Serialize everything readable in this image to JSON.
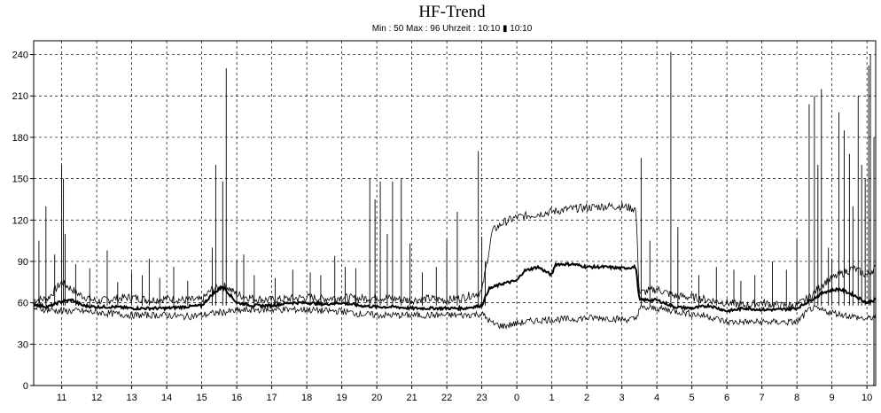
{
  "title": "HF-Trend",
  "subtitle": "Min : 50   Max : 96   Uhrzeit : 10:10 ▮ 10:10",
  "chart_data": {
    "type": "line",
    "title": "HF-Trend",
    "subtitle": "Min : 50   Max : 96   Uhrzeit : 10:10 ▮ 10:10",
    "xlabel": "",
    "ylabel": "",
    "ylim": [
      0,
      250
    ],
    "y_ticks": [
      0,
      30,
      60,
      90,
      120,
      150,
      180,
      210,
      240
    ],
    "x_ticks": [
      "11",
      "12",
      "13",
      "14",
      "15",
      "16",
      "17",
      "18",
      "19",
      "20",
      "21",
      "22",
      "23",
      "0",
      "1",
      "2",
      "3",
      "4",
      "5",
      "6",
      "7",
      "8",
      "9",
      "10"
    ],
    "x_range_hours": [
      10.2,
      34.25
    ],
    "grid": true,
    "series": [
      {
        "role": "max",
        "points": [
          [
            10.2,
            62
          ],
          [
            10.6,
            63
          ],
          [
            11,
            75
          ],
          [
            11.5,
            66
          ],
          [
            12,
            61
          ],
          [
            12.5,
            63
          ],
          [
            13,
            64
          ],
          [
            13.5,
            62
          ],
          [
            14,
            63
          ],
          [
            14.5,
            62
          ],
          [
            15,
            62
          ],
          [
            15.3,
            70
          ],
          [
            15.7,
            72
          ],
          [
            16,
            66
          ],
          [
            16.5,
            63
          ],
          [
            17,
            62
          ],
          [
            17.5,
            63
          ],
          [
            18,
            64
          ],
          [
            18.5,
            63
          ],
          [
            19,
            64
          ],
          [
            19.5,
            63
          ],
          [
            20,
            64
          ],
          [
            20.5,
            63
          ],
          [
            21,
            62
          ],
          [
            21.5,
            63
          ],
          [
            22,
            62
          ],
          [
            22.5,
            64
          ],
          [
            23,
            68
          ],
          [
            23.3,
            112
          ],
          [
            23.6,
            118
          ],
          [
            24,
            122
          ],
          [
            24.5,
            124
          ],
          [
            25,
            126
          ],
          [
            25.5,
            128
          ],
          [
            26,
            129
          ],
          [
            26.5,
            130
          ],
          [
            27,
            130
          ],
          [
            27.4,
            128
          ],
          [
            27.5,
            67
          ],
          [
            28,
            70
          ],
          [
            28.5,
            65
          ],
          [
            29,
            64
          ],
          [
            29.5,
            62
          ],
          [
            30,
            60
          ],
          [
            30.5,
            58
          ],
          [
            31,
            60
          ],
          [
            31.5,
            58
          ],
          [
            32,
            58
          ],
          [
            32.4,
            65
          ],
          [
            32.8,
            75
          ],
          [
            33.2,
            80
          ],
          [
            33.6,
            85
          ],
          [
            34,
            80
          ],
          [
            34.2,
            85
          ]
        ]
      },
      {
        "role": "mean",
        "points": [
          [
            10.2,
            59
          ],
          [
            10.6,
            57
          ],
          [
            11,
            61
          ],
          [
            11.3,
            62
          ],
          [
            11.6,
            58
          ],
          [
            12,
            57
          ],
          [
            12.5,
            57
          ],
          [
            13,
            56
          ],
          [
            13.5,
            56
          ],
          [
            14,
            56
          ],
          [
            14.5,
            57
          ],
          [
            15,
            58
          ],
          [
            15.3,
            66
          ],
          [
            15.6,
            72
          ],
          [
            16,
            60
          ],
          [
            16.5,
            58
          ],
          [
            17,
            58
          ],
          [
            17.5,
            60
          ],
          [
            18,
            60
          ],
          [
            18.5,
            59
          ],
          [
            19,
            60
          ],
          [
            19.5,
            58
          ],
          [
            20,
            57
          ],
          [
            20.5,
            57
          ],
          [
            21,
            56
          ],
          [
            21.5,
            56
          ],
          [
            22,
            56
          ],
          [
            22.5,
            56
          ],
          [
            23,
            58
          ],
          [
            23.2,
            70
          ],
          [
            23.6,
            74
          ],
          [
            24,
            76
          ],
          [
            24.2,
            83
          ],
          [
            24.6,
            86
          ],
          [
            25,
            80
          ],
          [
            25.1,
            88
          ],
          [
            25.6,
            88
          ],
          [
            26,
            86
          ],
          [
            26.5,
            86
          ],
          [
            27,
            85
          ],
          [
            27.4,
            86
          ],
          [
            27.5,
            62
          ],
          [
            28,
            62
          ],
          [
            28.5,
            57
          ],
          [
            29,
            56
          ],
          [
            29.5,
            58
          ],
          [
            30,
            54
          ],
          [
            30.5,
            56
          ],
          [
            31,
            55
          ],
          [
            31.5,
            55
          ],
          [
            32,
            56
          ],
          [
            32.4,
            62
          ],
          [
            32.8,
            68
          ],
          [
            33.2,
            70
          ],
          [
            33.6,
            66
          ],
          [
            34,
            60
          ],
          [
            34.2,
            62
          ]
        ]
      },
      {
        "role": "min",
        "points": [
          [
            10.2,
            56
          ],
          [
            10.6,
            55
          ],
          [
            11,
            54
          ],
          [
            11.5,
            54
          ],
          [
            12,
            53
          ],
          [
            12.5,
            52
          ],
          [
            13,
            51
          ],
          [
            13.5,
            51
          ],
          [
            14,
            51
          ],
          [
            14.5,
            50
          ],
          [
            15,
            51
          ],
          [
            15.5,
            53
          ],
          [
            16,
            54
          ],
          [
            16.5,
            55
          ],
          [
            17,
            55
          ],
          [
            17.5,
            55
          ],
          [
            18,
            55
          ],
          [
            18.5,
            54
          ],
          [
            19,
            54
          ],
          [
            19.5,
            52
          ],
          [
            20,
            51
          ],
          [
            20.5,
            51
          ],
          [
            21,
            51
          ],
          [
            21.5,
            51
          ],
          [
            22,
            51
          ],
          [
            22.5,
            51
          ],
          [
            23,
            52
          ],
          [
            23.3,
            45
          ],
          [
            23.6,
            43
          ],
          [
            24,
            45
          ],
          [
            24.5,
            47
          ],
          [
            25,
            48
          ],
          [
            25.5,
            48
          ],
          [
            26,
            49
          ],
          [
            26.5,
            49
          ],
          [
            27,
            48
          ],
          [
            27.4,
            48
          ],
          [
            27.5,
            56
          ],
          [
            28,
            56
          ],
          [
            28.5,
            54
          ],
          [
            29,
            52
          ],
          [
            29.5,
            50
          ],
          [
            30,
            46
          ],
          [
            30.5,
            46
          ],
          [
            31,
            46
          ],
          [
            31.5,
            46
          ],
          [
            32,
            46
          ],
          [
            32.4,
            56
          ],
          [
            32.8,
            54
          ],
          [
            33.2,
            52
          ],
          [
            33.6,
            50
          ],
          [
            34,
            48
          ],
          [
            34.2,
            50
          ]
        ]
      }
    ],
    "spikes": [
      [
        10.35,
        105
      ],
      [
        10.55,
        130
      ],
      [
        10.8,
        95
      ],
      [
        11,
        160
      ],
      [
        11.05,
        150
      ],
      [
        11.1,
        110
      ],
      [
        11.4,
        88
      ],
      [
        11.8,
        85
      ],
      [
        12.3,
        98
      ],
      [
        12.6,
        75
      ],
      [
        13,
        82
      ],
      [
        13.3,
        80
      ],
      [
        13.5,
        92
      ],
      [
        13.8,
        78
      ],
      [
        14.2,
        86
      ],
      [
        14.6,
        76
      ],
      [
        15.3,
        100
      ],
      [
        15.4,
        160
      ],
      [
        15.6,
        148
      ],
      [
        15.7,
        230
      ],
      [
        16.0,
        90
      ],
      [
        16.2,
        95
      ],
      [
        16.5,
        80
      ],
      [
        17.1,
        78
      ],
      [
        17.6,
        84
      ],
      [
        18.1,
        82
      ],
      [
        18.4,
        80
      ],
      [
        18.8,
        94
      ],
      [
        19.1,
        86
      ],
      [
        19.4,
        85
      ],
      [
        19.8,
        150
      ],
      [
        19.95,
        135
      ],
      [
        20.1,
        148
      ],
      [
        20.3,
        110
      ],
      [
        20.45,
        148
      ],
      [
        20.7,
        150
      ],
      [
        20.95,
        103
      ],
      [
        21.3,
        82
      ],
      [
        21.7,
        86
      ],
      [
        22,
        106
      ],
      [
        22.3,
        126
      ],
      [
        22.9,
        170
      ],
      [
        23.0,
        108
      ],
      [
        23.1,
        90
      ],
      [
        27.55,
        165
      ],
      [
        27.8,
        105
      ],
      [
        28.4,
        242
      ],
      [
        28.6,
        115
      ],
      [
        29.2,
        80
      ],
      [
        29.7,
        86
      ],
      [
        30.2,
        84
      ],
      [
        30.4,
        76
      ],
      [
        30.8,
        80
      ],
      [
        31.3,
        90
      ],
      [
        31.7,
        84
      ],
      [
        32.0,
        106
      ],
      [
        32.35,
        204
      ],
      [
        32.5,
        210
      ],
      [
        32.6,
        160
      ],
      [
        32.7,
        215
      ],
      [
        32.9,
        100
      ],
      [
        33.0,
        92
      ],
      [
        33.2,
        198
      ],
      [
        33.35,
        185
      ],
      [
        33.5,
        168
      ],
      [
        33.6,
        130
      ],
      [
        33.75,
        210
      ],
      [
        33.85,
        160
      ],
      [
        33.95,
        150
      ],
      [
        34.05,
        232
      ],
      [
        34.1,
        240
      ],
      [
        34.2,
        180
      ]
    ]
  }
}
